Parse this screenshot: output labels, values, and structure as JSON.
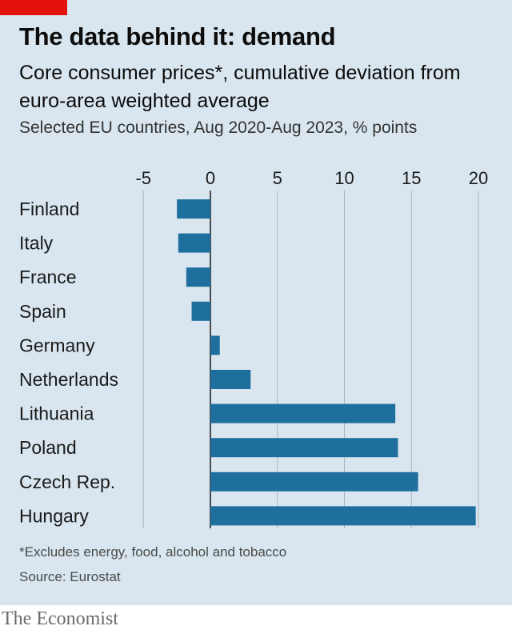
{
  "title": "The data behind it: demand",
  "subtitle": "Core consumer prices*, cumulative deviation from euro-area weighted average",
  "description": "Selected EU countries, Aug 2020-Aug 2023, % points",
  "footnote": "*Excludes energy, food, alcohol and tobacco",
  "source": "Source: Eurostat",
  "brand": "The Economist",
  "colors": {
    "bar": "#1f6f9e",
    "accent": "#e3120b",
    "background": "#d9e6ef",
    "grid": "#a7b6c0"
  },
  "chart_data": {
    "type": "bar",
    "orientation": "horizontal",
    "categories": [
      "Finland",
      "Italy",
      "France",
      "Spain",
      "Germany",
      "Netherlands",
      "Lithuania",
      "Poland",
      "Czech Rep.",
      "Hungary"
    ],
    "values": [
      -2.5,
      -2.4,
      -1.8,
      -1.4,
      0.7,
      3.0,
      13.8,
      14.0,
      15.5,
      19.8
    ],
    "xlim": [
      -5,
      20
    ],
    "xticks": [
      -5,
      0,
      5,
      10,
      15,
      20
    ],
    "xtick_labels": [
      "-5",
      "0",
      "5",
      "10",
      "15",
      "20"
    ],
    "tick_position": "top",
    "grid": true
  }
}
